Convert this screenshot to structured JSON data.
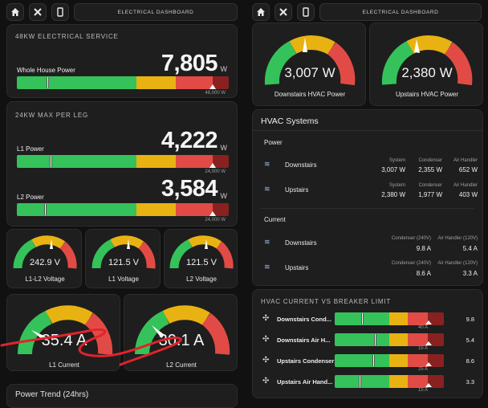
{
  "left": {
    "topbar": {
      "title": "ELECTRICAL DASHBOARD"
    },
    "service": {
      "title": "48KW ELECTRICAL SERVICE",
      "label": "Whole House Power",
      "value": "7,805",
      "unit": "W",
      "max": "48,000 W",
      "fraction": 0.163
    },
    "legs": {
      "title": "24KW MAX PER LEG",
      "l1": {
        "label": "L1 Power",
        "value": "4,222",
        "unit": "W",
        "max": "24,000 W",
        "fraction": 0.176
      },
      "l2": {
        "label": "L2 Power",
        "value": "3,584",
        "unit": "W",
        "max": "24,000 W",
        "fraction": 0.149
      }
    },
    "voltages": [
      {
        "value": "242.9 V",
        "name": "L1-L2 Voltage"
      },
      {
        "value": "121.5 V",
        "name": "L1 Voltage"
      },
      {
        "value": "121.5 V",
        "name": "L2 Voltage"
      }
    ],
    "currents": [
      {
        "value": "35.4 A",
        "name": "L1 Current"
      },
      {
        "value": "30.1 A",
        "name": "L2 Current"
      }
    ],
    "trend": {
      "title": "Power Trend (24hrs)"
    }
  },
  "right": {
    "topbar": {
      "title": "ELECTRICAL DASHBOARD"
    },
    "gauges": [
      {
        "value": "3,007 W",
        "name": "Downstairs HVAC Power"
      },
      {
        "value": "2,380 W",
        "name": "Upstairs HVAC Power"
      }
    ],
    "hvac": {
      "title": "HVAC Systems",
      "power_title": "Power",
      "power_rows": [
        {
          "name": "Downstairs",
          "h1": "System",
          "h2": "Condenser",
          "h3": "Air Handler",
          "v1": "3,007 W",
          "v2": "2,355 W",
          "v3": "652 W"
        },
        {
          "name": "Upstairs",
          "h1": "System",
          "h2": "Condenser",
          "h3": "Air Handler",
          "v1": "2,380 W",
          "v2": "1,977 W",
          "v3": "403 W"
        }
      ],
      "current_title": "Current",
      "current_rows": [
        {
          "name": "Downstairs",
          "h1": "Condenser (240V)",
          "h2": "Air Handler (120V)",
          "v1": "9.8 A",
          "v2": "5.4 A"
        },
        {
          "name": "Upstairs",
          "h1": "Condenser (240V)",
          "h2": "Air Handler (120V)",
          "v1": "8.6 A",
          "v2": "3.3 A"
        }
      ]
    },
    "breaker": {
      "title": "HVAC CURRENT VS BREAKER LIMIT",
      "rows": [
        {
          "name": "Downstairs Cond...",
          "limit": "40 A",
          "value": "9.8",
          "fraction": 0.245
        },
        {
          "name": "Downstairs Air H...",
          "limit": "15 A",
          "value": "5.4",
          "fraction": 0.36
        },
        {
          "name": "Upstairs Condenser",
          "limit": "25 A",
          "value": "8.6",
          "fraction": 0.344
        },
        {
          "name": "Upstairs Air Hand...",
          "limit": "15 A",
          "value": "3.3",
          "fraction": 0.22
        }
      ]
    }
  },
  "colors": {
    "green": "#35c25a",
    "yellow": "#e8b312",
    "red": "#e24b45",
    "darkred": "#8a2121",
    "annotation": "#e0242c"
  }
}
